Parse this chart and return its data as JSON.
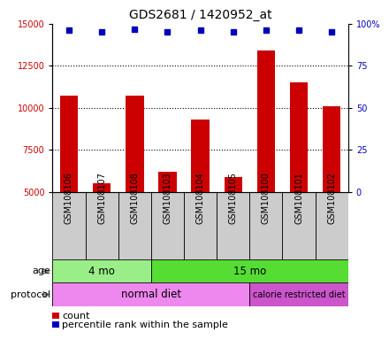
{
  "title": "GDS2681 / 1420952_at",
  "samples": [
    "GSM108106",
    "GSM108107",
    "GSM108108",
    "GSM108103",
    "GSM108104",
    "GSM108105",
    "GSM108100",
    "GSM108101",
    "GSM108102"
  ],
  "counts": [
    10700,
    5500,
    10700,
    6200,
    9300,
    5900,
    13400,
    11500,
    10100
  ],
  "percentile_ranks": [
    96,
    95,
    97,
    95,
    96,
    95,
    96,
    96,
    95
  ],
  "ylim_left": [
    5000,
    15000
  ],
  "ylim_right": [
    0,
    100
  ],
  "yticks_left": [
    5000,
    7500,
    10000,
    12500,
    15000
  ],
  "yticks_right": [
    0,
    25,
    50,
    75,
    100
  ],
  "bar_color": "#cc0000",
  "dot_color": "#0000bb",
  "sample_box_color": "#cccccc",
  "age_groups": [
    {
      "label": "4 mo",
      "start": 0,
      "end": 3,
      "color": "#99ee88"
    },
    {
      "label": "15 mo",
      "start": 3,
      "end": 9,
      "color": "#55dd33"
    }
  ],
  "protocol_groups": [
    {
      "label": "normal diet",
      "start": 0,
      "end": 6,
      "color": "#ee88ee"
    },
    {
      "label": "calorie restricted diet",
      "start": 6,
      "end": 9,
      "color": "#cc55cc"
    }
  ],
  "age_label": "age",
  "protocol_label": "protocol",
  "legend_count_label": "count",
  "legend_percentile_label": "percentile rank within the sample",
  "title_fontsize": 10,
  "tick_fontsize": 7,
  "label_fontsize": 8,
  "annotation_fontsize": 8.5,
  "small_annotation_fontsize": 7
}
